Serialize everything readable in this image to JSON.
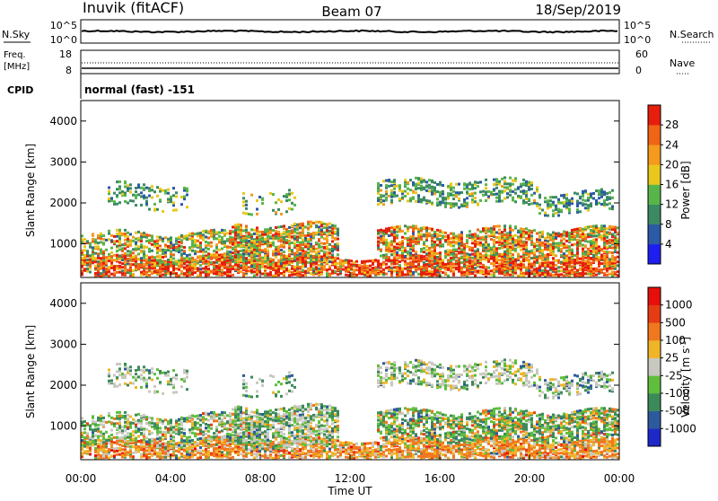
{
  "header": {
    "station": "Inuvik (fitACF)",
    "beam": "Beam 07",
    "date": "18/Sep/2019"
  },
  "top_panels": {
    "nsky_label": "N.Sky",
    "nsearch_label": "N.Search",
    "freq_label_line1": "Freq.",
    "freq_label_line2": "[MHz]",
    "nave_label": "Nave",
    "cpid_label": "CPID",
    "cpid_value": "normal (fast) -151",
    "noise_ticks_left": [
      "10^5",
      "10^0"
    ],
    "noise_ticks_right": [
      "10^5",
      "10^0"
    ],
    "freq_ticks_left": [
      "18",
      "8"
    ],
    "freq_ticks_right": [
      "60",
      "0"
    ]
  },
  "chart_data": [
    {
      "type": "heatmap",
      "name": "power",
      "ylabel": "Slant Range [km]",
      "xlabel": "Time UT",
      "x_ticks": [
        "00:00",
        "04:00",
        "08:00",
        "12:00",
        "16:00",
        "20:00",
        "00:00"
      ],
      "y_ticks": [
        "1000",
        "2000",
        "3000",
        "4000"
      ],
      "y_tick_values": [
        1000,
        2000,
        3000,
        4000
      ],
      "ylim": [
        180,
        4500
      ],
      "colorbar_label": "Power [dB]",
      "colorbar_ticks": [
        "4",
        "8",
        "12",
        "16",
        "20",
        "24",
        "28"
      ],
      "colorbar_colors": [
        "#1e1ef0",
        "#2b5aa6",
        "#3c8a64",
        "#58b54a",
        "#e9c71c",
        "#f59a1e",
        "#f06416",
        "#e61e0c"
      ]
    },
    {
      "type": "heatmap",
      "name": "velocity",
      "ylabel": "Slant Range [km]",
      "xlabel": "Time UT",
      "x_ticks": [
        "00:00",
        "04:00",
        "08:00",
        "12:00",
        "16:00",
        "20:00",
        "00:00"
      ],
      "y_ticks": [
        "1000",
        "2000",
        "3000",
        "4000"
      ],
      "y_tick_values": [
        1000,
        2000,
        3000,
        4000
      ],
      "ylim": [
        180,
        4500
      ],
      "colorbar_label": "Velocity [m s",
      "colorbar_label_sup": "-1",
      "colorbar_label_close": "]",
      "colorbar_ticks": [
        "1000",
        "500",
        "100",
        "25",
        "-25",
        "-100",
        "-500",
        "-1000"
      ],
      "colorbar_colors": [
        "#1e28c8",
        "#2d5a9c",
        "#3c8a5a",
        "#5fbe3c",
        "#c8c8c0",
        "#f0b428",
        "#f0781e",
        "#e63c14",
        "#e60f0a"
      ]
    }
  ]
}
